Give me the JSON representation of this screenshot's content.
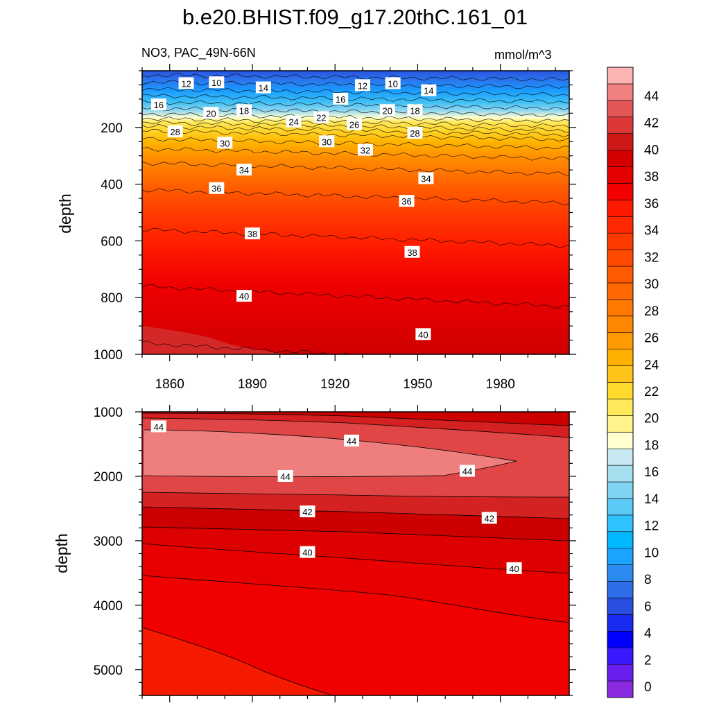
{
  "title": "b.e20.BHIST.f09_g17.20thC.161_01",
  "chart_data": {
    "type": "heatmap",
    "subtitle_left": "NO3, PAC_49N-66N",
    "units": "mmol/m^3",
    "xlabel": "",
    "x_ticks": [
      1860,
      1890,
      1920,
      1950,
      1980
    ],
    "x_range": [
      1850,
      2005
    ],
    "panels": [
      {
        "name": "upper",
        "ylabel": "depth",
        "y_range": [
          0,
          1000
        ],
        "y_ticks": [
          200,
          400,
          600,
          800,
          1000
        ],
        "isolines": [
          {
            "depth": 15,
            "value": 8
          },
          {
            "depth": 40,
            "value": 10
          },
          {
            "depth": 65,
            "value": 12
          },
          {
            "depth": 88,
            "value": 14
          },
          {
            "depth": 110,
            "value": 16
          },
          {
            "depth": 132,
            "value": 18
          },
          {
            "depth": 152,
            "value": 20
          },
          {
            "depth": 168,
            "value": 22
          },
          {
            "depth": 182,
            "value": 24
          },
          {
            "depth": 196,
            "value": 26
          },
          {
            "depth": 212,
            "value": 28
          },
          {
            "depth": 240,
            "value": 30
          },
          {
            "depth": 275,
            "value": 32
          },
          {
            "depth": 325,
            "value": 34
          },
          {
            "depth": 420,
            "value": 36
          },
          {
            "depth": 560,
            "value": 38
          },
          {
            "depth": 760,
            "value": 40
          },
          {
            "depth": 960,
            "value": 42
          }
        ],
        "contour_labels": [
          {
            "x": 1866,
            "depth": 45,
            "text": "12"
          },
          {
            "x": 1877,
            "depth": 42,
            "text": "10"
          },
          {
            "x": 1894,
            "depth": 60,
            "text": "14"
          },
          {
            "x": 1856,
            "depth": 120,
            "text": "16"
          },
          {
            "x": 1875,
            "depth": 150,
            "text": "20"
          },
          {
            "x": 1887,
            "depth": 140,
            "text": "18"
          },
          {
            "x": 1930,
            "depth": 52,
            "text": "12"
          },
          {
            "x": 1941,
            "depth": 45,
            "text": "10"
          },
          {
            "x": 1954,
            "depth": 70,
            "text": "14"
          },
          {
            "x": 1922,
            "depth": 100,
            "text": "16"
          },
          {
            "x": 1939,
            "depth": 140,
            "text": "20"
          },
          {
            "x": 1949,
            "depth": 140,
            "text": "18"
          },
          {
            "x": 1905,
            "depth": 180,
            "text": "24"
          },
          {
            "x": 1915,
            "depth": 165,
            "text": "22"
          },
          {
            "x": 1927,
            "depth": 190,
            "text": "26"
          },
          {
            "x": 1862,
            "depth": 215,
            "text": "28"
          },
          {
            "x": 1880,
            "depth": 255,
            "text": "30"
          },
          {
            "x": 1917,
            "depth": 250,
            "text": "30"
          },
          {
            "x": 1949,
            "depth": 220,
            "text": "28"
          },
          {
            "x": 1931,
            "depth": 280,
            "text": "32"
          },
          {
            "x": 1887,
            "depth": 350,
            "text": "34"
          },
          {
            "x": 1953,
            "depth": 380,
            "text": "34"
          },
          {
            "x": 1877,
            "depth": 415,
            "text": "36"
          },
          {
            "x": 1946,
            "depth": 460,
            "text": "36"
          },
          {
            "x": 1890,
            "depth": 575,
            "text": "38"
          },
          {
            "x": 1948,
            "depth": 640,
            "text": "38"
          },
          {
            "x": 1887,
            "depth": 795,
            "text": "40"
          },
          {
            "x": 1952,
            "depth": 930,
            "text": "40"
          }
        ]
      },
      {
        "name": "lower",
        "ylabel": "depth",
        "y_range": [
          1000,
          5400
        ],
        "y_ticks": [
          1000,
          2000,
          3000,
          4000,
          5000
        ],
        "contour_labels": [
          {
            "x": 1856,
            "depth": 1230,
            "text": "44"
          },
          {
            "x": 1926,
            "depth": 1450,
            "text": "44"
          },
          {
            "x": 1902,
            "depth": 2000,
            "text": "44"
          },
          {
            "x": 1968,
            "depth": 1920,
            "text": "44"
          },
          {
            "x": 1910,
            "depth": 2550,
            "text": "42"
          },
          {
            "x": 1976,
            "depth": 2650,
            "text": "42"
          },
          {
            "x": 1910,
            "depth": 3180,
            "text": "40"
          },
          {
            "x": 1985,
            "depth": 3430,
            "text": "40"
          }
        ]
      }
    ],
    "colorbar": {
      "labels": [
        "0",
        "2",
        "4",
        "6",
        "8",
        "10",
        "12",
        "14",
        "16",
        "18",
        "20",
        "22",
        "24",
        "26",
        "28",
        "30",
        "32",
        "34",
        "36",
        "38",
        "40",
        "42",
        "44"
      ],
      "colors": [
        "#8a2be2",
        "#6a1ff0",
        "#3a18ff",
        "#0000ff",
        "#1a2bf0",
        "#2a4ee0",
        "#2e6ee8",
        "#2b8bf0",
        "#1aa4ff",
        "#00b8ff",
        "#30c2ff",
        "#5ccaf7",
        "#80d4f2",
        "#a6dff0",
        "#c8e8f2",
        "#ffffd0",
        "#fff48c",
        "#ffe85a",
        "#ffd92c",
        "#ffc41a",
        "#ffb000",
        "#ff9a00",
        "#ff8800",
        "#ff7800",
        "#ff6800",
        "#ff5a00",
        "#ff4a00",
        "#ff3a00",
        "#ff2800",
        "#ff1800",
        "#f50000",
        "#e50000",
        "#d40000",
        "#cf1818",
        "#dc3838",
        "#e35656",
        "#f08080",
        "#ffb4b4"
      ]
    }
  }
}
